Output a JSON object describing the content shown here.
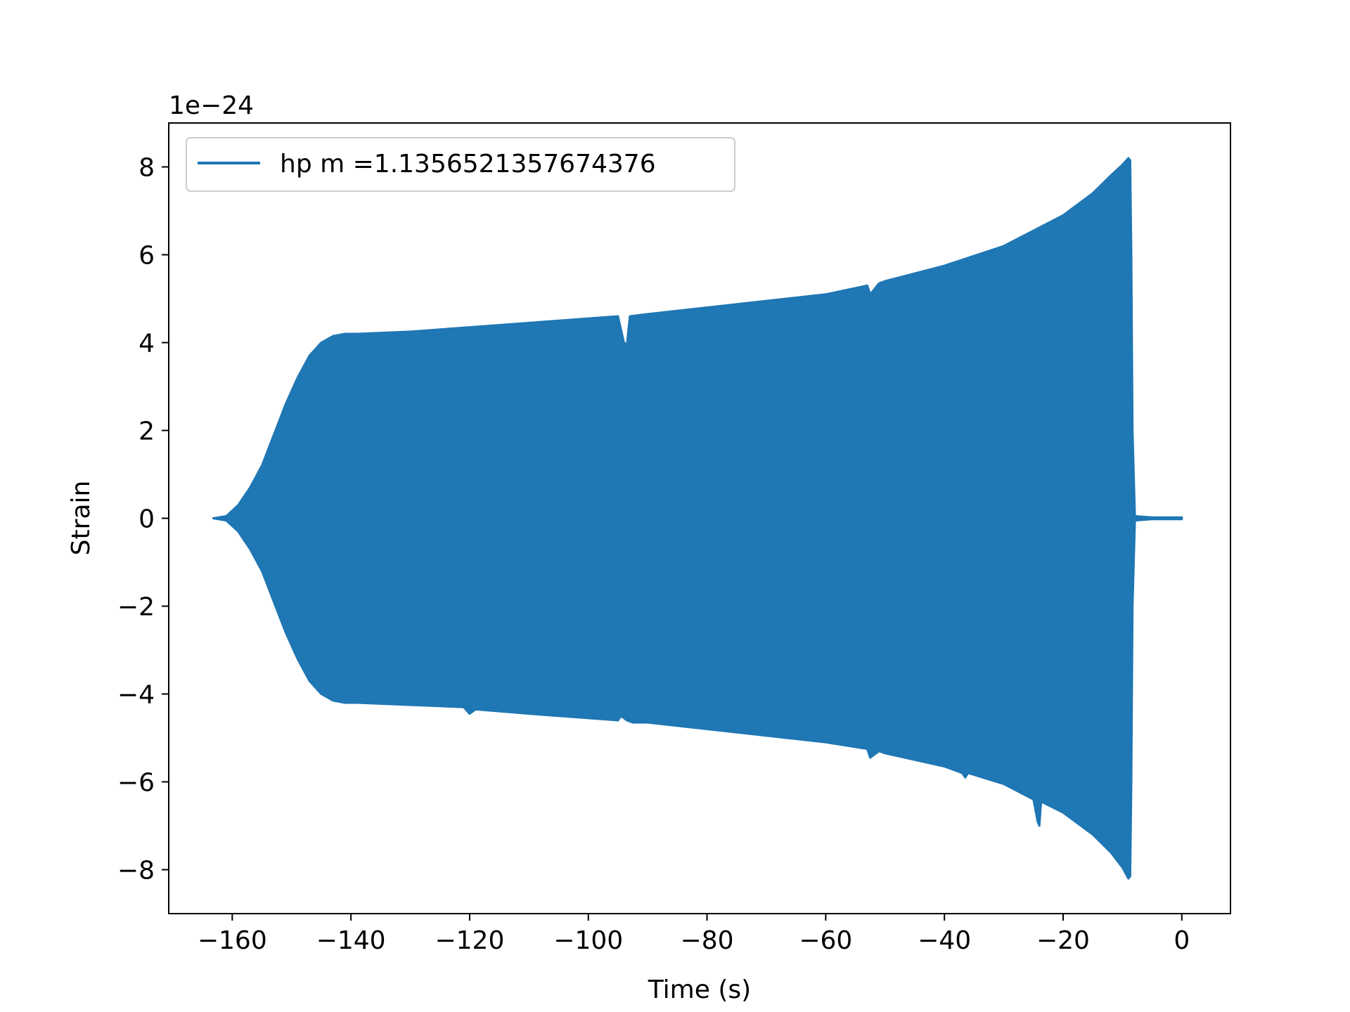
{
  "chart_data": {
    "type": "line",
    "title": "",
    "xlabel": "Time (s)",
    "ylabel": "Strain",
    "y_offset_label": "1e−24",
    "xlim": [
      -170.7,
      8.2
    ],
    "ylim": [
      -9.0,
      9.0
    ],
    "x_ticks": [
      -160,
      -140,
      -120,
      -100,
      -80,
      -60,
      -40,
      -20,
      0
    ],
    "x_tick_labels": [
      "−160",
      "−140",
      "−120",
      "−100",
      "−80",
      "−60",
      "−40",
      "−20",
      "0"
    ],
    "y_ticks": [
      -8,
      -6,
      -4,
      -2,
      0,
      2,
      4,
      6,
      8
    ],
    "y_tick_labels": [
      "−8",
      "−6",
      "−4",
      "−2",
      "0",
      "2",
      "4",
      "6",
      "8"
    ],
    "grid": false,
    "legend": {
      "location": "upper-left",
      "entries": [
        {
          "label": "hp m =1.1356521357674376",
          "color": "#1f77b4"
        }
      ]
    },
    "series": [
      {
        "name": "hp m =1.1356521357674376",
        "color": "#1f77b4",
        "style": "oscillating waveform, amplitude envelope shown",
        "upper_envelope": {
          "x": [
            -163.2,
            -161,
            -159,
            -157,
            -155,
            -153,
            -151,
            -149,
            -147,
            -145,
            -143,
            -141,
            -139,
            -130,
            -120,
            -110,
            -100,
            -95,
            -94,
            -93.5,
            -93,
            -90,
            -80,
            -70,
            -60,
            -53,
            -52.5,
            -51,
            -50,
            -40,
            -30,
            -20,
            -15,
            -12,
            -10,
            -9.0,
            -8.7,
            -8.5,
            -8.3,
            -7.9,
            -5,
            -2,
            0
          ],
          "y": [
            0.0,
            0.05,
            0.3,
            0.7,
            1.2,
            1.9,
            2.6,
            3.2,
            3.7,
            4.0,
            4.15,
            4.2,
            4.2,
            4.25,
            4.35,
            4.45,
            4.55,
            4.6,
            4.0,
            3.95,
            4.6,
            4.65,
            4.8,
            4.95,
            5.1,
            5.3,
            5.1,
            5.35,
            5.4,
            5.75,
            6.2,
            6.9,
            7.4,
            7.8,
            8.05,
            8.2,
            8.15,
            6.0,
            2.0,
            0.05,
            0.02,
            0.02,
            0.02
          ]
        },
        "lower_envelope": {
          "x": [
            -163.2,
            -161,
            -159,
            -157,
            -155,
            -153,
            -151,
            -149,
            -147,
            -145,
            -143,
            -141,
            -139,
            -130,
            -121,
            -120,
            -119,
            -110,
            -100,
            -95,
            -94.5,
            -93.5,
            -92.5,
            -90,
            -80,
            -70,
            -60,
            -53,
            -52.5,
            -51,
            -50,
            -40,
            -37,
            -36.5,
            -36,
            -30,
            -25,
            -24.3,
            -24,
            -23.7,
            -20,
            -15,
            -12,
            -10,
            -9.0,
            -8.7,
            -8.5,
            -8.3,
            -7.9,
            -5,
            -2,
            0
          ],
          "y": [
            0.0,
            -0.05,
            -0.3,
            -0.7,
            -1.2,
            -1.9,
            -2.6,
            -3.2,
            -3.7,
            -4.0,
            -4.15,
            -4.2,
            -4.2,
            -4.25,
            -4.3,
            -4.45,
            -4.35,
            -4.45,
            -4.55,
            -4.6,
            -4.5,
            -4.6,
            -4.65,
            -4.65,
            -4.8,
            -4.95,
            -5.1,
            -5.25,
            -5.45,
            -5.3,
            -5.35,
            -5.65,
            -5.8,
            -5.9,
            -5.8,
            -6.05,
            -6.4,
            -6.9,
            -7.0,
            -6.45,
            -6.7,
            -7.2,
            -7.6,
            -7.95,
            -8.2,
            -8.15,
            -6.0,
            -2.0,
            -0.05,
            -0.02,
            -0.02,
            -0.02
          ]
        }
      }
    ]
  }
}
